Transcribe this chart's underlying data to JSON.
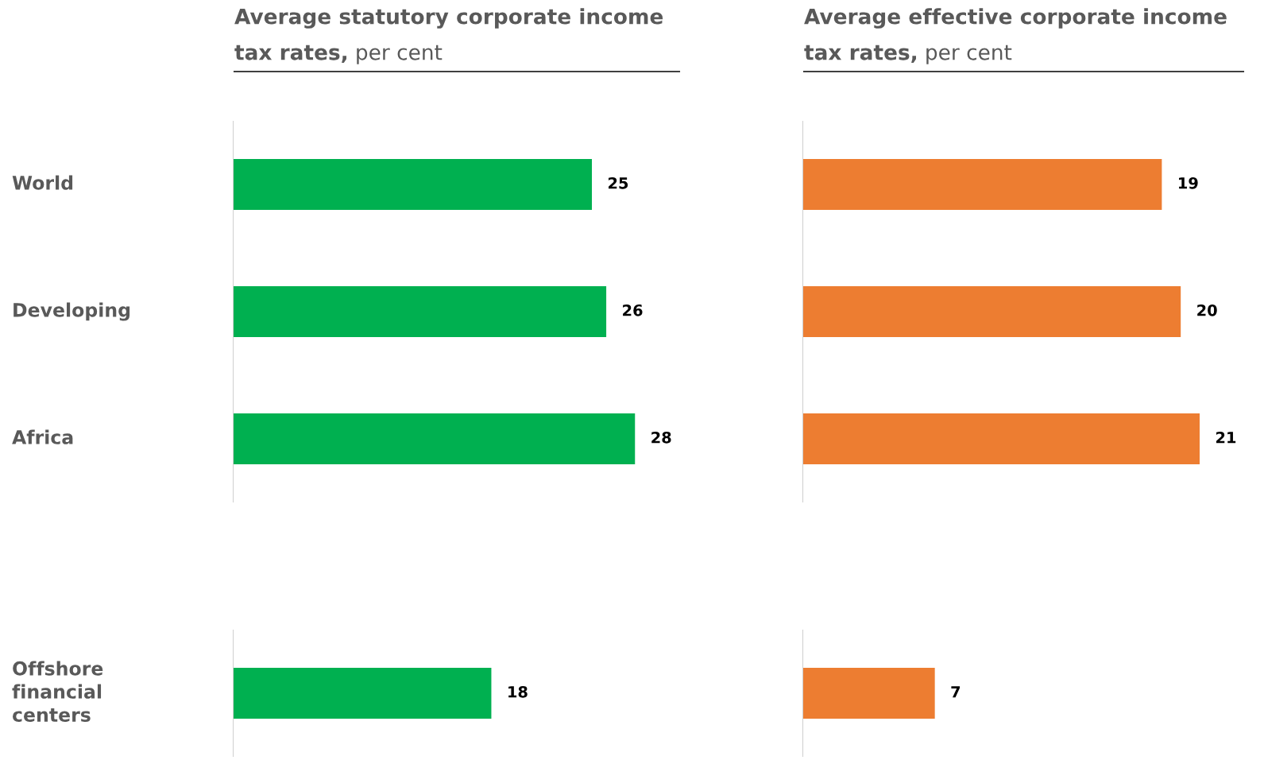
{
  "chart_data": [
    {
      "type": "bar",
      "orientation": "horizontal",
      "title": "Average statutory corporate income tax rates,",
      "subtitle": "per cent",
      "categories": [
        "World",
        "Developing",
        "Africa",
        null,
        "Offshore financial centers"
      ],
      "tick_labels": "y",
      "data_labels": true,
      "series": [
        {
          "color": "#00b050",
          "values": [
            25,
            26,
            28,
            null,
            18
          ]
        }
      ]
    },
    {
      "type": "bar",
      "orientation": "horizontal",
      "title": "Average effective corporate income tax rates,",
      "subtitle": "per cent",
      "categories": [
        null,
        null,
        null,
        null,
        null
      ],
      "tick_labels": false,
      "data_labels": true,
      "series": [
        {
          "color": "#ed7d31",
          "values": [
            19,
            20,
            21,
            null,
            7
          ]
        }
      ]
    }
  ]
}
